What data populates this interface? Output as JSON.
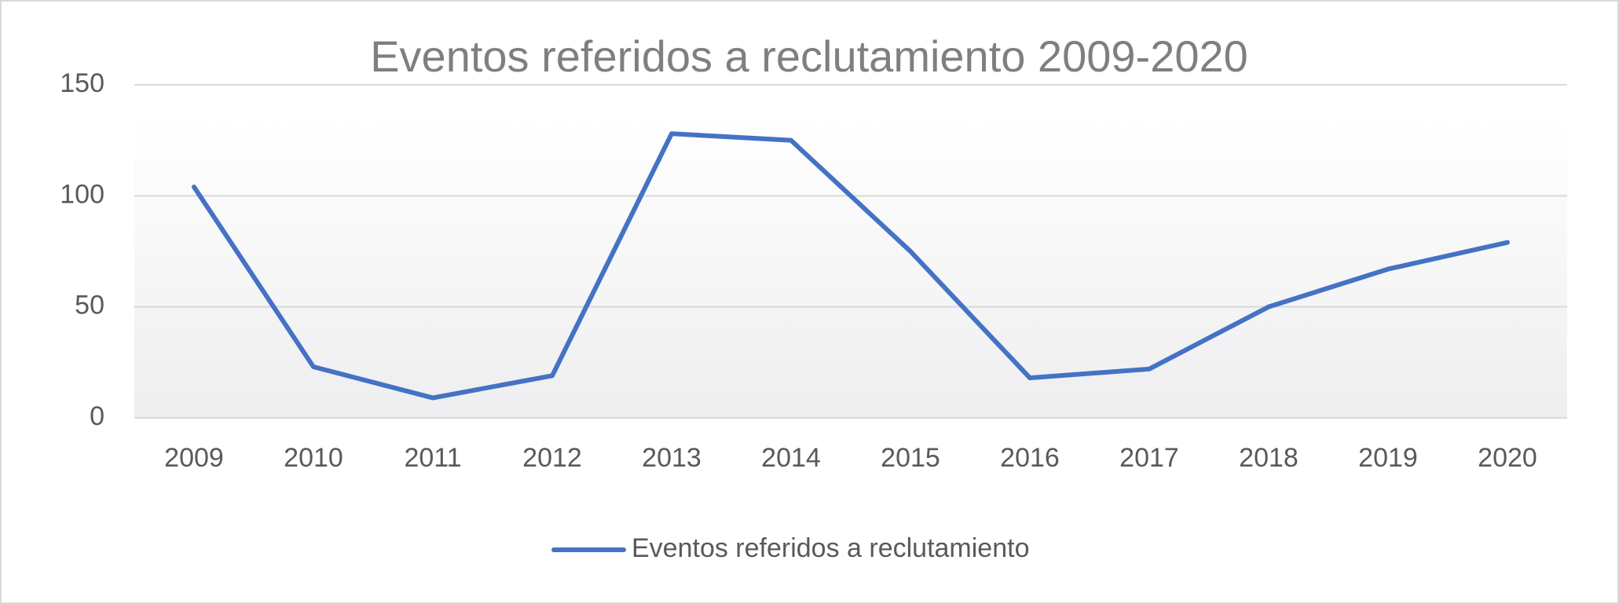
{
  "chart_data": {
    "type": "line",
    "title": "Eventos referidos a reclutamiento 2009-2020",
    "categories": [
      "2009",
      "2010",
      "2011",
      "2012",
      "2013",
      "2014",
      "2015",
      "2016",
      "2017",
      "2018",
      "2019",
      "2020"
    ],
    "series": [
      {
        "name": "Eventos referidos a reclutamiento",
        "color": "#4472c4",
        "values": [
          104,
          23,
          9,
          19,
          128,
          125,
          75,
          18,
          22,
          50,
          67,
          79
        ]
      }
    ],
    "ylim": [
      0,
      150
    ],
    "yticks": [
      0,
      50,
      100,
      150
    ],
    "grid": true,
    "legend": "bottom"
  }
}
